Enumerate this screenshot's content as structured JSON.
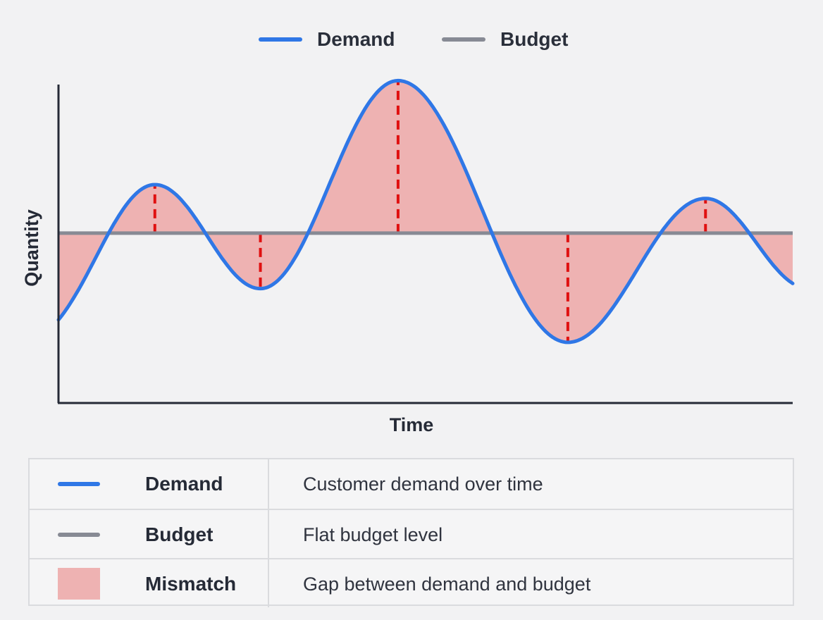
{
  "chart_data": {
    "type": "line",
    "title": "",
    "xlabel": "Time",
    "ylabel": "Quantity",
    "axis_ticks": "none",
    "grid": false,
    "legend_position": "top-center",
    "series": [
      {
        "name": "Demand",
        "color": "#2f77e6",
        "points": [
          {
            "x": 0,
            "y": 2.4
          },
          {
            "x": 2.1,
            "y": 6.3
          },
          {
            "x": 4.4,
            "y": 3.3
          },
          {
            "x": 7.4,
            "y": 9.3
          },
          {
            "x": 11.1,
            "y": 1.75
          },
          {
            "x": 14.1,
            "y": 5.9
          },
          {
            "x": 16.0,
            "y": 3.45
          }
        ]
      },
      {
        "name": "Budget",
        "color": "#878a94",
        "points": [
          {
            "x": 0,
            "y": 4.9
          },
          {
            "x": 16.0,
            "y": 4.9
          }
        ]
      }
    ],
    "shaded_region": {
      "name": "Mismatch",
      "between": [
        "Demand",
        "Budget"
      ],
      "color": "#eeb2b2"
    },
    "gap_markers_at_x": [
      2.1,
      4.4,
      7.4,
      11.1,
      14.1
    ],
    "gap_marker_color": "#e01010",
    "xlim": [
      0,
      16
    ],
    "ylim": [
      0,
      10
    ]
  },
  "legend": {
    "demand_label": "Demand",
    "budget_label": "Budget"
  },
  "key_table": {
    "rows": [
      {
        "name": "Demand",
        "description": "Customer demand over time",
        "swatch": "line",
        "color": "#2f77e6"
      },
      {
        "name": "Budget",
        "description": "Flat budget level",
        "swatch": "line",
        "color": "#878a94"
      },
      {
        "name": "Mismatch",
        "description": "Gap between demand and budget",
        "swatch": "box",
        "color": "#eeb2b2"
      }
    ]
  }
}
